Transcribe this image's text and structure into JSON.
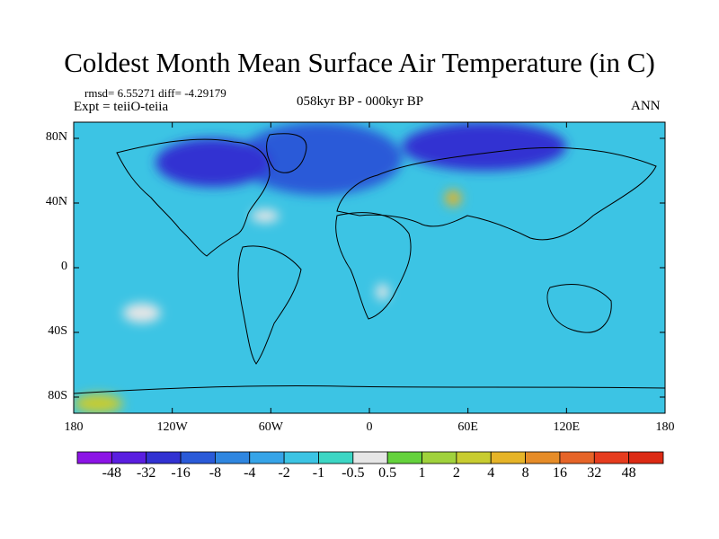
{
  "header": {
    "title": "Coldest Month Mean Surface Air Temperature (in C)",
    "stats": "rmsd= 6.55271 diff= -4.29179",
    "expt": "Expt = teiiO-teiia",
    "period": "058kyr BP - 000kyr BP",
    "season": "ANN"
  },
  "axes": {
    "lat_labels": [
      "80N",
      "40N",
      "0",
      "40S",
      "80S"
    ],
    "lat_values": [
      80,
      40,
      0,
      -40,
      -80
    ],
    "lon_labels": [
      "180",
      "120W",
      "60W",
      "0",
      "60E",
      "120E",
      "180"
    ],
    "lon_values": [
      -180,
      -120,
      -60,
      0,
      60,
      120,
      180
    ]
  },
  "colorbar": {
    "labels": [
      "-48",
      "-32",
      "-16",
      "-8",
      "-4",
      "-2",
      "-1",
      "-0.5",
      "0.5",
      "1",
      "2",
      "4",
      "8",
      "16",
      "32",
      "48"
    ],
    "colors": [
      "#8c14e6",
      "#5a1ee0",
      "#3232d2",
      "#2a5ad8",
      "#2f86e0",
      "#36a4e8",
      "#3cc4e4",
      "#3cd6c4",
      "#e6e6e6",
      "#64d23c",
      "#a0d23c",
      "#c8cc30",
      "#e6b428",
      "#e68c28",
      "#e66428",
      "#e63c1e",
      "#dc2a14"
    ]
  },
  "chart_data": {
    "type": "heatmap",
    "title": "Coldest Month Mean Surface Air Temperature (in C)",
    "xlabel": "",
    "ylabel": "",
    "xlim": [
      -180,
      180
    ],
    "ylim": [
      -90,
      90
    ],
    "colors": {
      "base_ocean": "#3cc4e4",
      "cool": "#2f86e0",
      "cold": "#2a5ad8",
      "colder": "#3232d2",
      "near_zero": "#e6e6e6",
      "warm": "#e6b428",
      "warm_light": "#c8cc30"
    },
    "regions": [
      {
        "label": "North Atlantic cooling",
        "color": "cold",
        "lon": [
          -80,
          20
        ],
        "lat": [
          45,
          90
        ]
      },
      {
        "label": "Arctic Asia cooling",
        "color": "colder",
        "lon": [
          20,
          120
        ],
        "lat": [
          60,
          90
        ]
      },
      {
        "label": "Canada cooling",
        "color": "colder",
        "lon": [
          -130,
          -60
        ],
        "lat": [
          50,
          80
        ]
      },
      {
        "label": "Subtropical Atlantic near zero",
        "color": "near_zero",
        "lon": [
          -72,
          -55
        ],
        "lat": [
          28,
          36
        ]
      },
      {
        "label": "South Pacific near zero",
        "color": "near_zero",
        "lon": [
          -150,
          -127
        ],
        "lat": [
          -34,
          -22
        ]
      },
      {
        "label": "South Atlantic near zero",
        "color": "near_zero",
        "lon": [
          4,
          12
        ],
        "lat": [
          -20,
          -10
        ]
      },
      {
        "label": "Caspian warming",
        "color": "warm",
        "lon": [
          46,
          56
        ],
        "lat": [
          38,
          48
        ]
      },
      {
        "label": "Antarctic Ross shelf warming",
        "color": "warm_light",
        "lon": [
          -180,
          -150
        ],
        "lat": [
          -90,
          -78
        ]
      }
    ]
  }
}
